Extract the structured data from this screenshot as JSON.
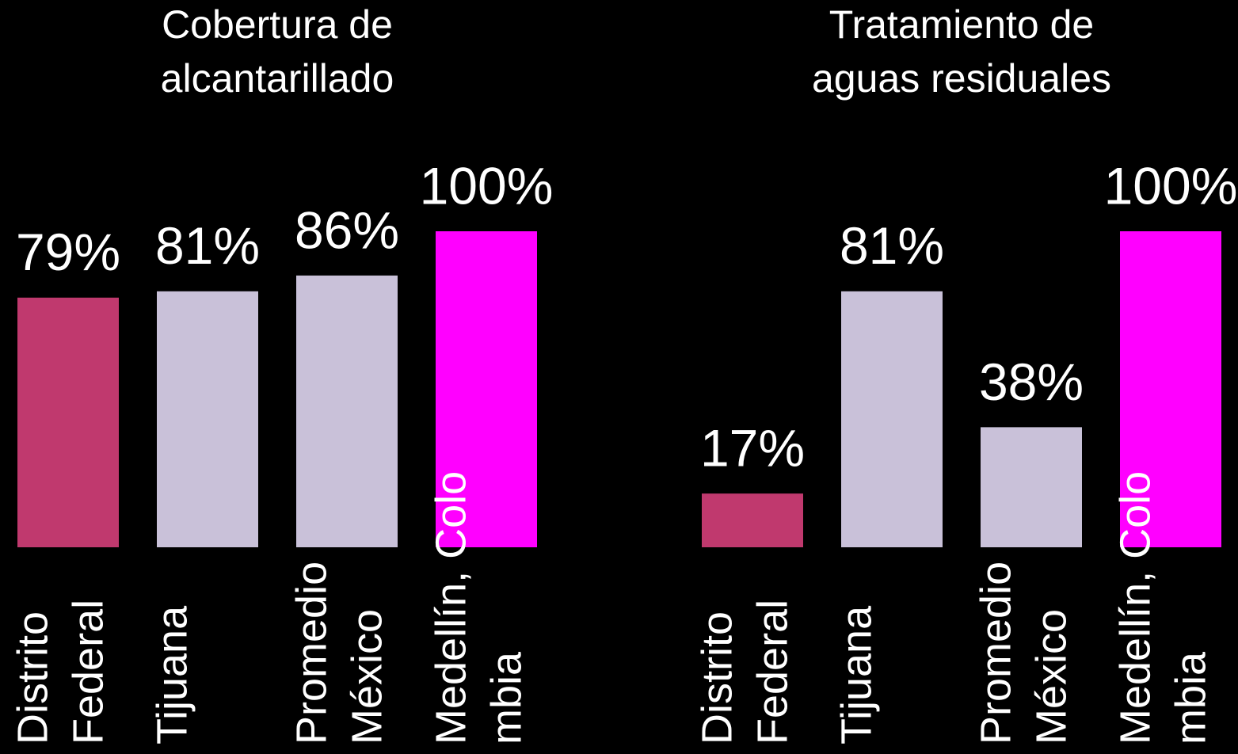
{
  "chart_data": [
    {
      "type": "bar",
      "title": [
        "Cobertura de",
        "alcantarillado"
      ],
      "categories": [
        [
          "Distrito",
          "Federal"
        ],
        [
          "Tijuana"
        ],
        [
          "Promedio",
          "México"
        ],
        [
          "Medellín, Colo",
          "mbia"
        ]
      ],
      "values": [
        79,
        81,
        86,
        100
      ],
      "value_labels": [
        "79%",
        "81%",
        "86%",
        "100%"
      ],
      "colors": [
        "#c0396e",
        "#c9c1d9",
        "#c9c1d9",
        "#ff00ff"
      ],
      "ylim": [
        0,
        100
      ]
    },
    {
      "type": "bar",
      "title": [
        "Tratamiento de",
        "aguas residuales"
      ],
      "categories": [
        [
          "Distrito",
          "Federal"
        ],
        [
          "Tijuana"
        ],
        [
          "Promedio",
          "México"
        ],
        [
          "Medellín, Colo",
          "mbia"
        ]
      ],
      "values": [
        17,
        81,
        38,
        100
      ],
      "value_labels": [
        "17%",
        "81%",
        "38%",
        "100%"
      ],
      "colors": [
        "#c0396e",
        "#c9c1d9",
        "#c9c1d9",
        "#ff00ff"
      ],
      "ylim": [
        0,
        100
      ]
    }
  ]
}
